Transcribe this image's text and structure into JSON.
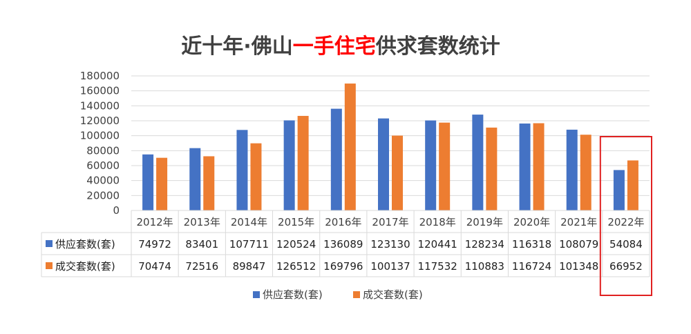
{
  "chart_data": {
    "type": "bar",
    "title": {
      "prefix": "近十年·佛山",
      "highlight": "一手住宅",
      "suffix": "供求套数统计"
    },
    "categories": [
      "2012年",
      "2013年",
      "2014年",
      "2015年",
      "2016年",
      "2017年",
      "2018年",
      "2019年",
      "2020年",
      "2021年",
      "2022年"
    ],
    "series": [
      {
        "name": "供应套数(套)",
        "color": "#4472C4",
        "values": [
          74972,
          83401,
          107711,
          120524,
          136089,
          123130,
          120441,
          128234,
          116318,
          108079,
          54084
        ]
      },
      {
        "name": "成交套数(套)",
        "color": "#ED7D31",
        "values": [
          70474,
          72516,
          89847,
          126512,
          169796,
          100137,
          117532,
          110883,
          116724,
          101348,
          66952
        ]
      }
    ],
    "yticks": [
      "0",
      "20000",
      "40000",
      "60000",
      "80000",
      "100000",
      "120000",
      "140000",
      "160000",
      "180000"
    ],
    "ylim": [
      0,
      180000
    ],
    "grid": true,
    "legend_position": "bottom",
    "data_table": true,
    "highlight_category": "2022年",
    "colors": {
      "title_highlight": "#FF0000",
      "highlight_box": "#E02020",
      "grid": "#D9D9D9",
      "axis_text": "#404040"
    }
  }
}
